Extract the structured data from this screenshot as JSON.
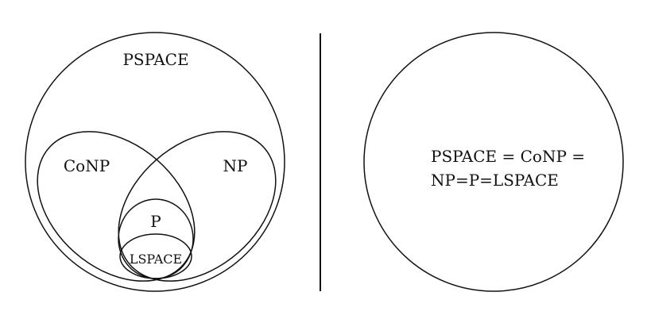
{
  "left_diagram": {
    "pspace_label": "PSPACE",
    "conp_label": "CoNP",
    "np_label": "NP",
    "p_label": "P",
    "lspace_label": "LSPACE"
  },
  "right_diagram": {
    "statement_line1": "PSPACE = CoNP =",
    "statement_line2": "NP=P=LSPACE"
  }
}
